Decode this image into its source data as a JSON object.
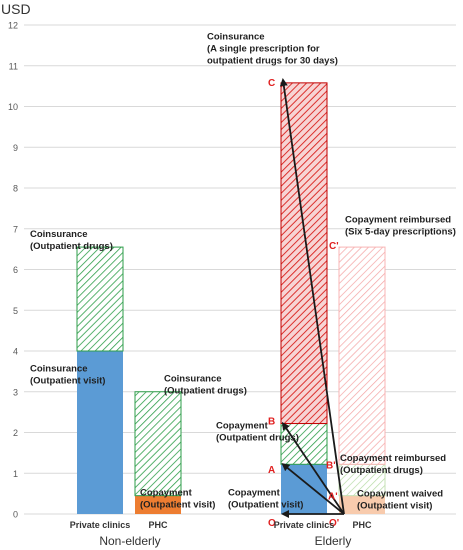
{
  "chart_data": {
    "type": "bar",
    "ylabel": "USD",
    "ylim": [
      0,
      12
    ],
    "yticks": [
      0,
      1,
      2,
      3,
      4,
      5,
      6,
      7,
      8,
      9,
      10,
      11,
      12
    ],
    "grid": true,
    "groups": [
      {
        "name": "Non-elderly",
        "bars": [
          {
            "label": "Private clinics",
            "segments": [
              {
                "from": 0,
                "to": 4.0,
                "pattern": "solid",
                "color": "#5b9bd5"
              },
              {
                "from": 4.0,
                "to": 6.55,
                "pattern": "hatch",
                "color": "#2e9e4a"
              }
            ]
          },
          {
            "label": "PHC",
            "segments": [
              {
                "from": 0,
                "to": 0.45,
                "pattern": "solid",
                "color": "#ed7d31"
              },
              {
                "from": 0.45,
                "to": 3.0,
                "pattern": "hatch",
                "color": "#2e9e4a"
              }
            ]
          }
        ]
      },
      {
        "name": "Elderly",
        "bars": [
          {
            "label": "Private clinics",
            "segments": [
              {
                "from": 0,
                "to": 1.22,
                "pattern": "solid",
                "color": "#5b9bd5"
              },
              {
                "from": 1.22,
                "to": 2.22,
                "pattern": "hatch",
                "color": "#2e9e4a"
              },
              {
                "from": 2.22,
                "to": 10.58,
                "pattern": "hatch-filled",
                "color": "#e0201b"
              }
            ]
          },
          {
            "label": "PHC",
            "segments": [
              {
                "from": 0,
                "to": 0.45,
                "pattern": "solid-light",
                "color": "#f8cbad"
              },
              {
                "from": 0.45,
                "to": 1.22,
                "pattern": "hatch-light",
                "color": "#a9d18e"
              },
              {
                "from": 1.22,
                "to": 6.55,
                "pattern": "hatch-light",
                "color": "#f4a3a3"
              }
            ]
          }
        ]
      }
    ],
    "annotations": [
      {
        "text": [
          "Coinsurance",
          "(Outpatient drugs)"
        ],
        "x": 0.3,
        "y": 6.8
      },
      {
        "text": [
          "Coinsurance",
          "(Outpatient visit)"
        ],
        "x": 0.3,
        "y": 3.5
      },
      {
        "text": [
          "Coinsurance",
          "(Outpatient drugs)"
        ],
        "x": 1.32,
        "y": 3.25
      },
      {
        "text": [
          "Copayment",
          "(Outpatient visit)"
        ],
        "x": 1.32,
        "y": 0.45
      },
      {
        "text": [
          "Copayment",
          "(Outpatient visit)"
        ],
        "x": 2.0,
        "y": 0.45
      },
      {
        "text": [
          "Coinsurance",
          "(A single prescription for",
          "outpatient drugs for 30 days)"
        ],
        "x": 2.13,
        "y": 11.65
      },
      {
        "text": [
          "Copayment reimbursed",
          "(Six 5-day prescriptions)"
        ],
        "x": 3.0,
        "y": 7.15
      },
      {
        "text": [
          "Copayment",
          "(Outpatient drugs)"
        ],
        "x": 1.72,
        "y": 2.1
      },
      {
        "text": [
          "Copayment reimbursed",
          "(Outpatient drugs)"
        ],
        "x": 3.0,
        "y": 1.3
      },
      {
        "text": [
          "Copayment waived",
          "(Outpatient visit)"
        ],
        "x": 3.0,
        "y": 0.43
      }
    ],
    "point_labels": [
      {
        "text": "C",
        "x": 2.4,
        "y": 10.6
      },
      {
        "text": "C'",
        "x": 2.85,
        "y": 6.6
      },
      {
        "text": "B",
        "x": 2.4,
        "y": 2.3
      },
      {
        "text": "B'",
        "x": 2.85,
        "y": 1.22
      },
      {
        "text": "A",
        "x": 2.4,
        "y": 1.1
      },
      {
        "text": "A'",
        "x": 2.85,
        "y": 0.45
      },
      {
        "text": "O",
        "x": 2.4,
        "y": -0.2
      },
      {
        "text": "O'",
        "x": 2.85,
        "y": -0.2
      }
    ],
    "arrows": [
      {
        "from": {
          "x": 2.96,
          "y": 0
        },
        "to": {
          "x": 2.45,
          "y": 10.65
        }
      },
      {
        "from": {
          "x": 2.96,
          "y": 0
        },
        "to": {
          "x": 2.45,
          "y": 2.22
        }
      },
      {
        "from": {
          "x": 2.96,
          "y": 0
        },
        "to": {
          "x": 2.45,
          "y": 1.22
        }
      },
      {
        "from": {
          "x": 2.96,
          "y": 0
        },
        "to": {
          "x": 2.45,
          "y": 0
        }
      }
    ]
  }
}
